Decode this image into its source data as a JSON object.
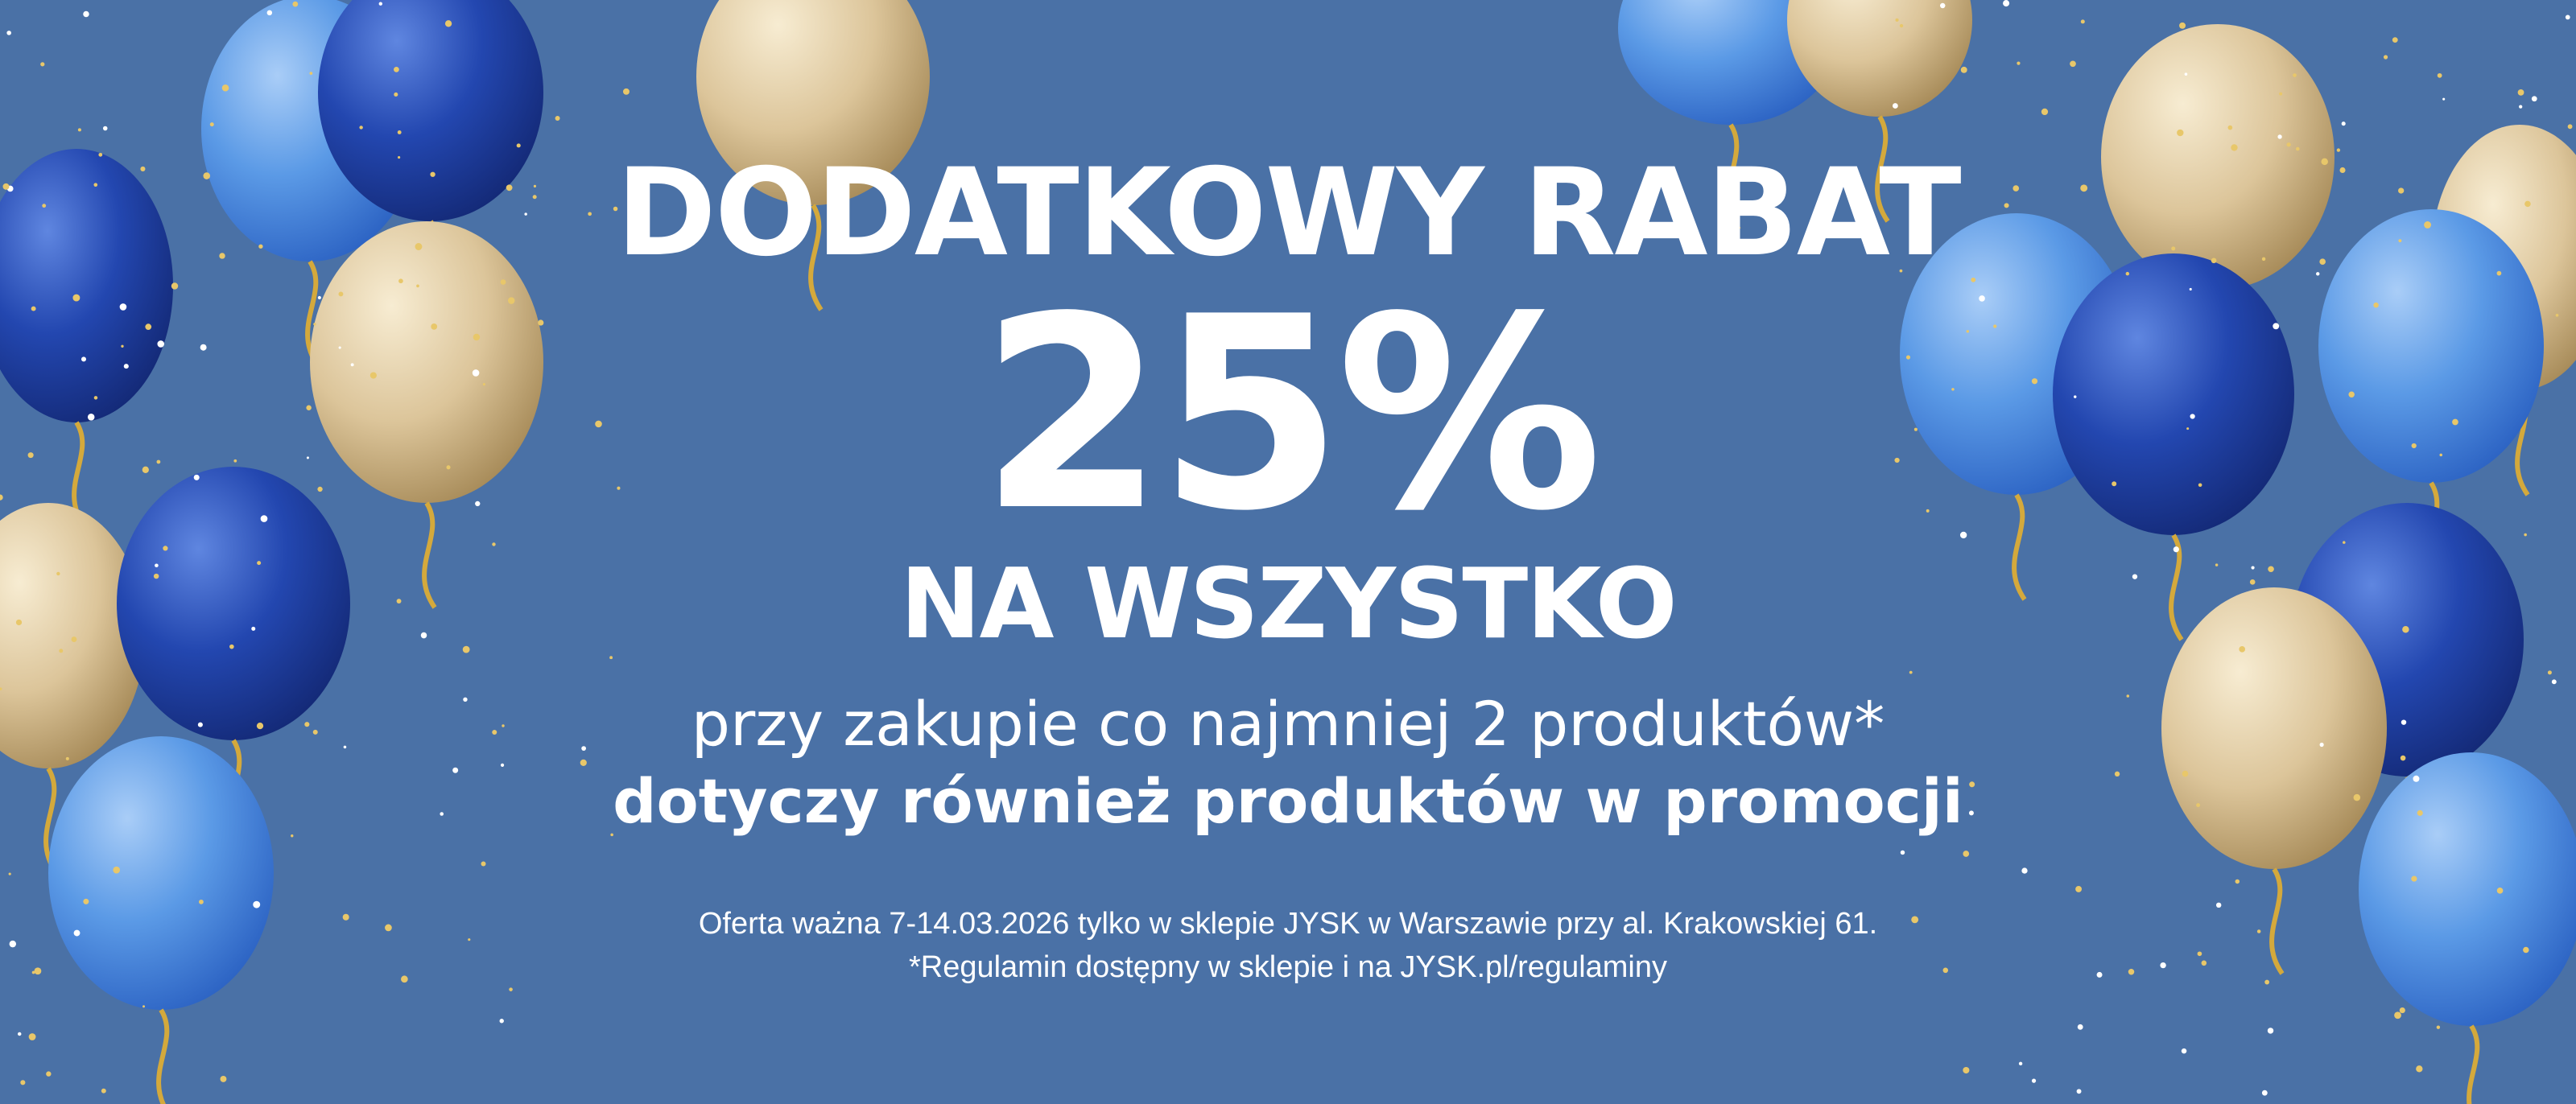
{
  "banner": {
    "headline": "DODATKOWY RABAT",
    "discount": "25%",
    "subheadline": "NA WSZYSTKO",
    "condition": "przy zakupie co najmniej 2 produktów*",
    "note_bold": "dotyczy również produktów w promocji",
    "fine_print_1": "Oferta ważna 7-14.03.2026 tylko w sklepie JYSK w Warszawie przy al. Krakowskiej 61.",
    "fine_print_2": "*Regulamin dostępny w sklepie i na JYSK.pl/regulaminy"
  },
  "colors": {
    "background": "#4a71a6",
    "balloon_dark_blue": "#1f3f9e",
    "balloon_light_blue": "#4f8fe0",
    "balloon_gold": "#d9c293",
    "ribbon_gold": "#d4a93c"
  }
}
